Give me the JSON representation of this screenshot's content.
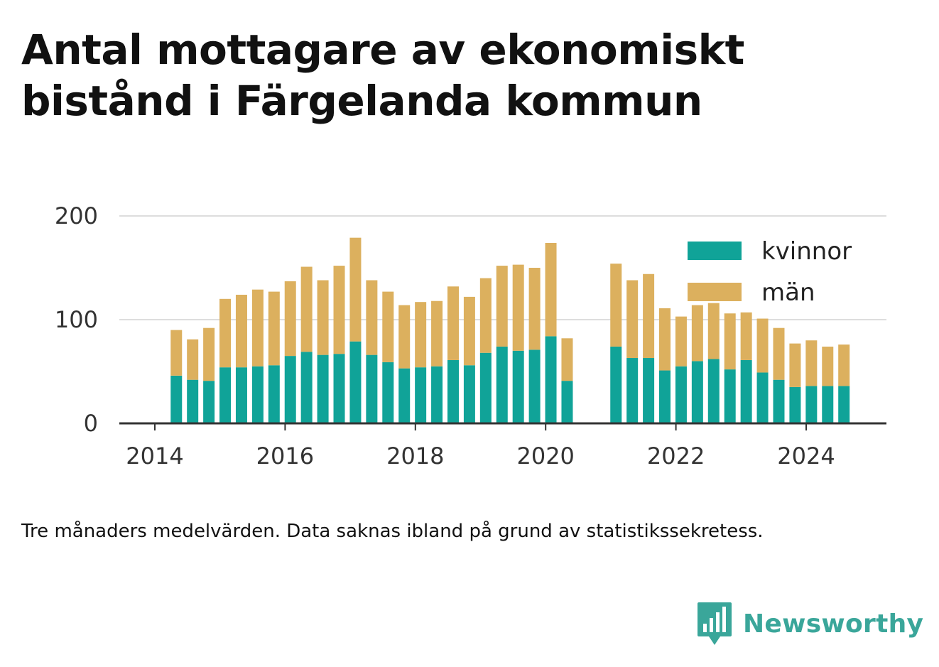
{
  "title": "Antal mottagare av ekonomiskt bistånd i Färgelanda kommun",
  "caption": "Tre månaders medelvärden. Data saknas ibland på grund av statistikssekretess.",
  "brand": {
    "name": "Newsworthy",
    "icon": "newsworthy-bar-chart-icon"
  },
  "colors": {
    "kvinnor": "#10a398",
    "man": "#dcb05e",
    "grid": "#dddddd",
    "axis": "#333333"
  },
  "chart_data": {
    "type": "bar",
    "stacked": true,
    "ylim": [
      0,
      200
    ],
    "yticks": [
      0,
      100,
      200
    ],
    "xticks": [
      2014,
      2016,
      2018,
      2020,
      2022,
      2024
    ],
    "xlim": [
      2014,
      2025.2
    ],
    "grid": true,
    "legend_position": "top-right",
    "x": [
      2014.33,
      2014.58,
      2014.83,
      2015.08,
      2015.33,
      2015.58,
      2015.83,
      2016.08,
      2016.33,
      2016.58,
      2016.83,
      2017.08,
      2017.33,
      2017.58,
      2017.83,
      2018.08,
      2018.33,
      2018.58,
      2018.83,
      2019.08,
      2019.33,
      2019.58,
      2019.83,
      2020.08,
      2020.33,
      2021.08,
      2021.33,
      2021.58,
      2021.83,
      2022.08,
      2022.33,
      2022.58,
      2022.83,
      2023.08,
      2023.33,
      2023.58,
      2023.83,
      2024.08,
      2024.33,
      2024.58
    ],
    "series": [
      {
        "name": "kvinnor",
        "values": [
          46,
          42,
          41,
          54,
          54,
          55,
          56,
          65,
          69,
          66,
          67,
          79,
          66,
          59,
          53,
          54,
          55,
          61,
          56,
          68,
          74,
          70,
          71,
          84,
          41,
          74,
          63,
          63,
          51,
          55,
          60,
          62,
          52,
          61,
          49,
          42,
          35,
          36,
          36,
          36
        ]
      },
      {
        "name": "män",
        "values": [
          44,
          39,
          51,
          66,
          70,
          74,
          71,
          72,
          82,
          72,
          85,
          100,
          72,
          68,
          61,
          63,
          63,
          71,
          66,
          72,
          78,
          83,
          79,
          90,
          41,
          80,
          75,
          81,
          60,
          48,
          54,
          54,
          54,
          46,
          52,
          50,
          42,
          44,
          38,
          40
        ]
      }
    ]
  }
}
